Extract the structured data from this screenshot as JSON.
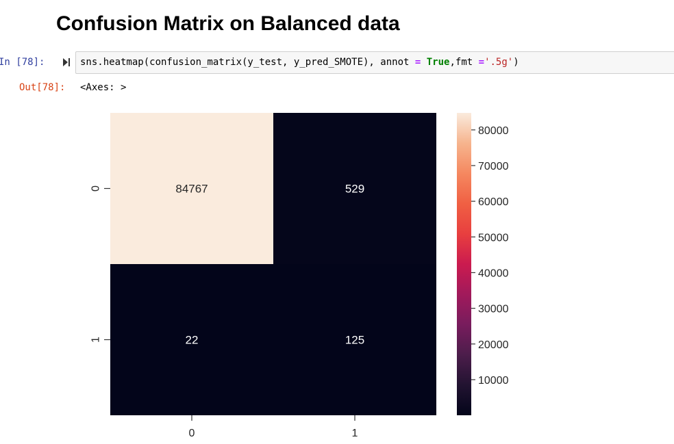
{
  "heading": "Confusion Matrix on Balanced data",
  "cell": {
    "in_prompt": "In [78]:",
    "out_prompt": "Out[78]:",
    "code": {
      "p1": "sns.heatmap(confusion_matrix(y_test, y_pred_SMOTE), annot ",
      "op1": "=",
      "p2": " ",
      "kw": "True",
      "p3": ",fmt ",
      "op2": "=",
      "str": "'.5g'",
      "p4": ")"
    },
    "output": "<Axes: >"
  },
  "colors": {
    "prompt_in": "#303f9f",
    "prompt_out": "#d84315",
    "keyword": "#008000",
    "operator": "#aa22ff",
    "string": "#ba2121",
    "heatmap_low": "#03051a",
    "heatmap_high": "#faebdd"
  },
  "chart_data": {
    "type": "heatmap",
    "x_ticks": [
      "0",
      "1"
    ],
    "y_ticks": [
      "0",
      "1"
    ],
    "values": [
      [
        84767,
        529
      ],
      [
        22,
        125
      ]
    ],
    "annotations": [
      [
        "84767",
        "529"
      ],
      [
        "22",
        "125"
      ]
    ],
    "colorbar": {
      "ticks": [
        10000,
        20000,
        30000,
        40000,
        50000,
        60000,
        70000,
        80000
      ],
      "range": [
        22,
        84767
      ],
      "colormap": "rocket"
    }
  }
}
